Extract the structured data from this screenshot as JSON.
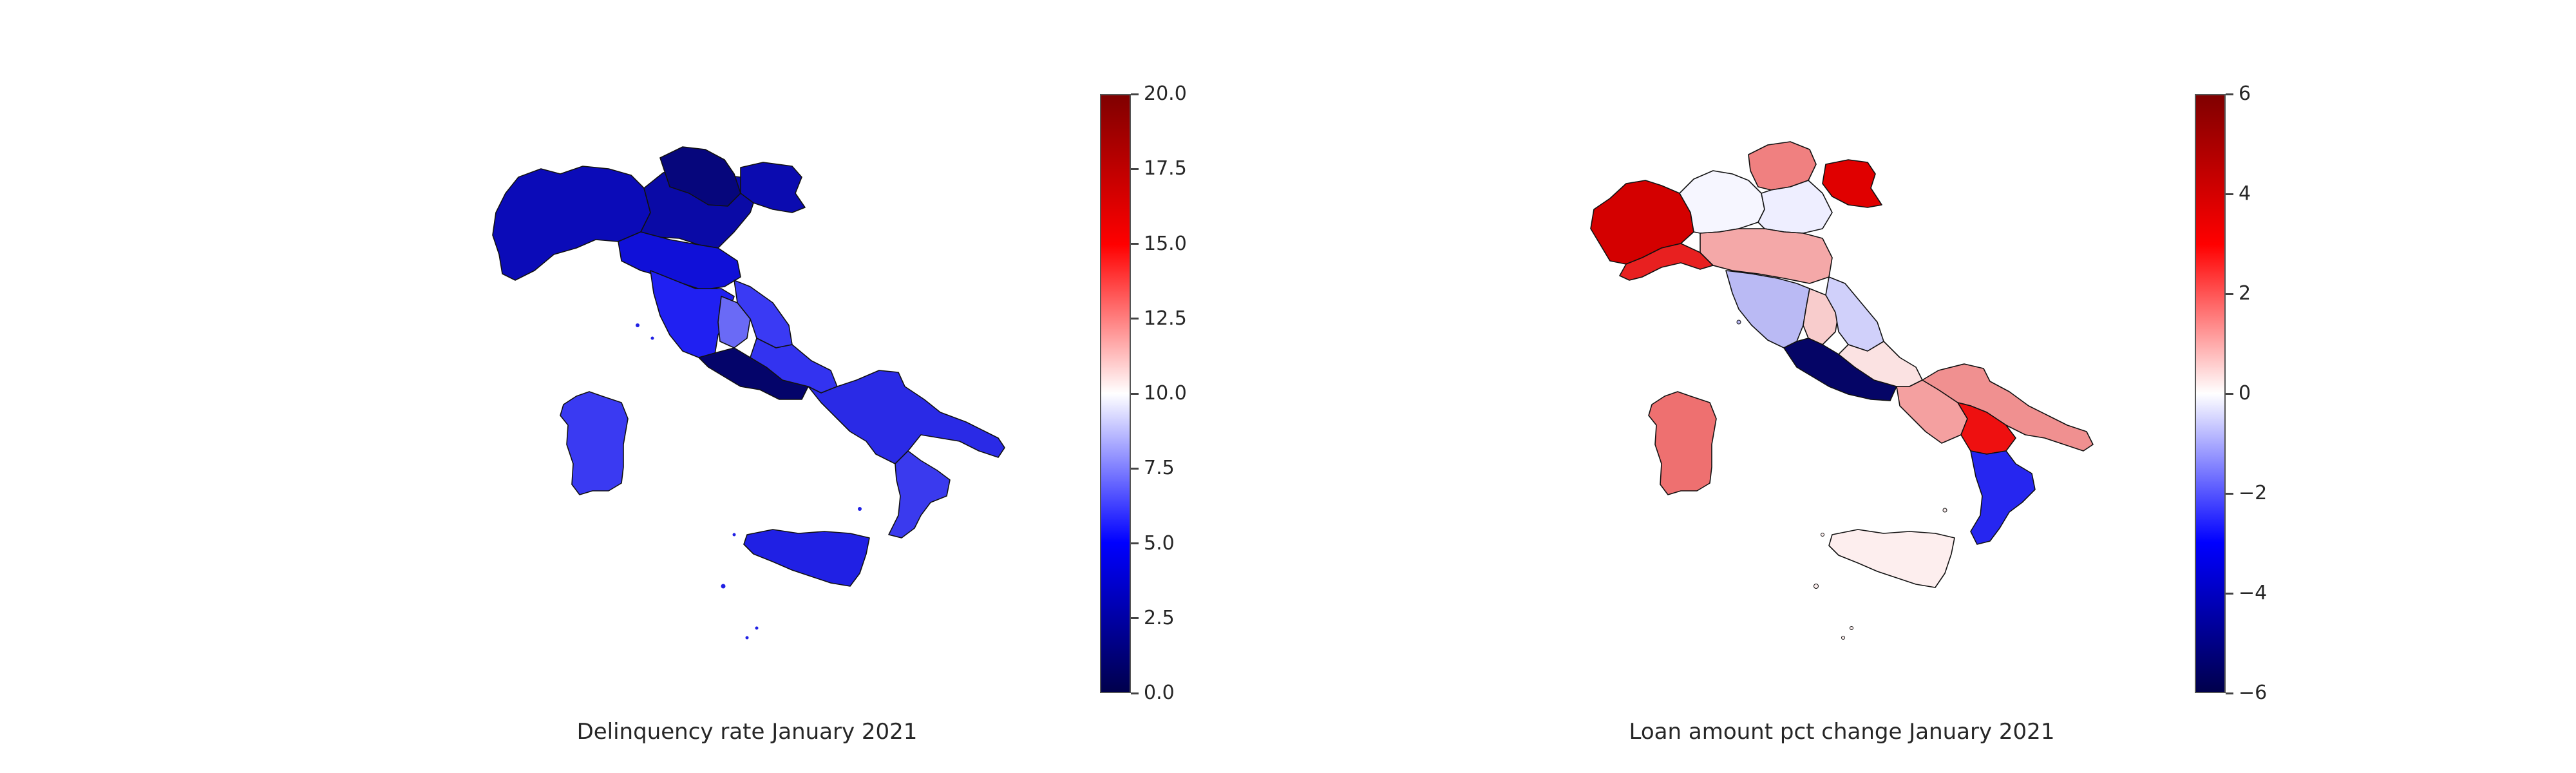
{
  "maps": [
    {
      "caption": "Delinquency rate January 2021",
      "colorbar": {
        "colormap": "seismic",
        "range": [
          0.0,
          20.0
        ],
        "ticks": [
          "0.0",
          "2.5",
          "5.0",
          "7.5",
          "10.0",
          "12.5",
          "15.0",
          "17.5",
          "20.0"
        ]
      },
      "region_colors": {
        "north_west": "#0b0bb8",
        "north_east": "#0a0aa6",
        "trentino": "#06067c",
        "friuli": "#0b0bb0",
        "emilia": "#1010d8",
        "tuscany": "#2020f2",
        "umbria": "#6a6af6",
        "marche": "#3a3af4",
        "lazio": "#04046a",
        "abruzzo": "#3333f0",
        "south": "#2a2ae6",
        "calabria": "#3a3aee",
        "sicily": "#2020e4",
        "sardinia": "#3a3af2"
      }
    },
    {
      "caption": "Loan amount pct change January 2021",
      "colorbar": {
        "colormap": "seismic",
        "range": [
          -6,
          6
        ],
        "ticks": [
          "−6",
          "−4",
          "−2",
          "0",
          "2",
          "4",
          "6"
        ]
      },
      "region_colors": {
        "north_west": "#d40000",
        "liguria": "#e82020",
        "lombardy": "#f6f6ff",
        "trentino": "#f08080",
        "veneto": "#eeeeff",
        "friuli": "#e00000",
        "emilia": "#f4a8a8",
        "tuscany": "#babaf4",
        "umbria": "#f8cccc",
        "marche": "#d0d0fa",
        "lazio": "#050566",
        "abruzzo": "#fbe2e2",
        "campania": "#f4a0a0",
        "puglia": "#f09090",
        "basilicata": "#ee1010",
        "calabria": "#2626f0",
        "sicily": "#fdeeee",
        "sardinia": "#ee7070"
      }
    }
  ]
}
